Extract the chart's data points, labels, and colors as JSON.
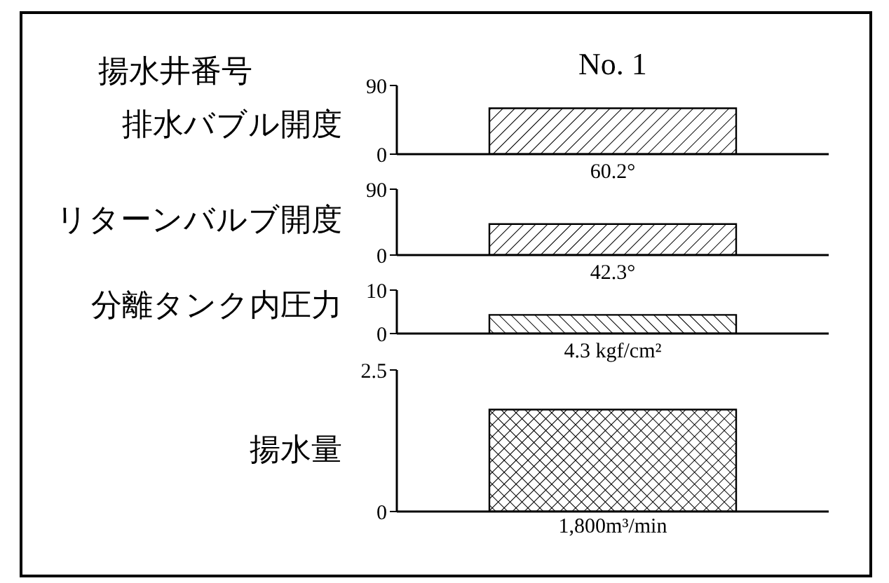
{
  "chart_data": [
    {
      "type": "bar",
      "xlabel": "揚水井番号",
      "ylabel": "排水バブル開度",
      "categories": [
        "No. 1"
      ],
      "values": [
        60.2
      ],
      "value_labels": [
        "60.2°"
      ],
      "color": "#000000",
      "ylim": [
        0,
        90
      ],
      "yticks": [
        0,
        90
      ]
    },
    {
      "type": "bar",
      "ylabel": "リターンバルブ開度",
      "categories": [
        null
      ],
      "values": [
        42.3
      ],
      "value_labels": [
        "42.3°"
      ],
      "color": "#000000",
      "ylim": [
        0,
        90
      ],
      "yticks": [
        0,
        90
      ],
      "tick_labels": "y"
    },
    {
      "type": "bar",
      "ylabel": "分離タンク内圧力",
      "categories": [
        null
      ],
      "values": [
        4.3
      ],
      "value_labels": [
        "4.3 kgf/cm²"
      ],
      "color": "#000000",
      "ylim": [
        0,
        10
      ],
      "yticks": [
        0,
        10
      ],
      "tick_labels": "y"
    },
    {
      "type": "bar",
      "ylabel": "揚水量",
      "categories": [
        null
      ],
      "values": [
        1.8
      ],
      "annotations": [
        "1,800m³/min"
      ],
      "color": "#000000",
      "ylim": [
        0,
        2.5
      ],
      "yticks": [
        0,
        2.5
      ],
      "tick_labels": "y"
    }
  ]
}
